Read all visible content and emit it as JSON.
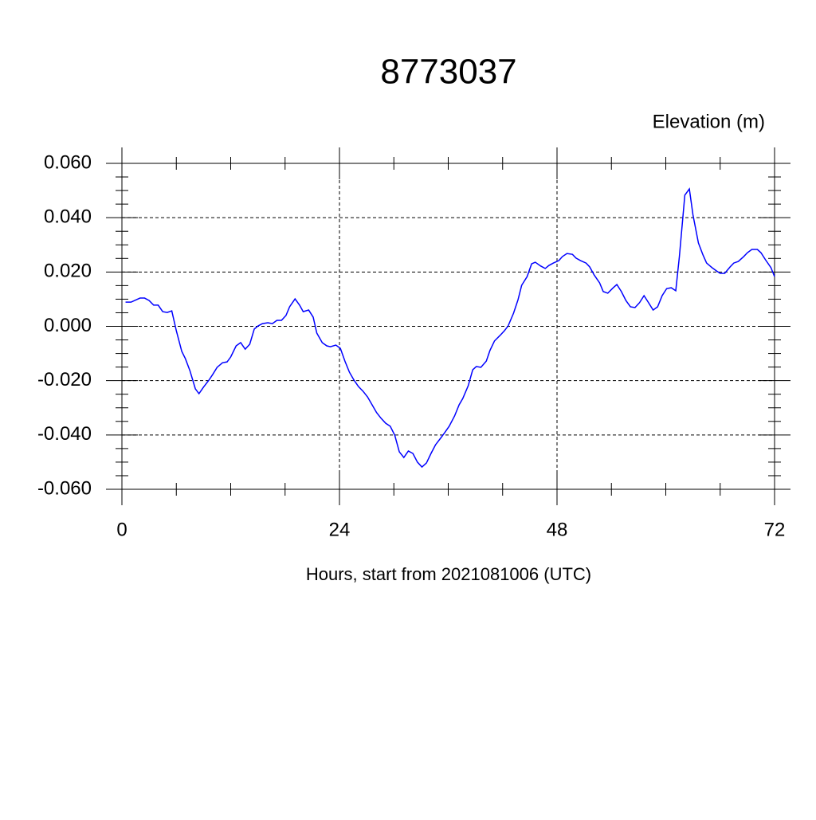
{
  "chart_data": {
    "type": "line",
    "title": "8773037",
    "ylabel": "Elevation (m)",
    "xlabel": "Hours, start from 2021081006 (UTC)",
    "x": [
      0.4,
      1.0,
      2.0,
      2.5,
      3.0,
      3.5,
      4.0,
      4.5,
      5.0,
      5.5,
      6.0,
      6.6,
      7.0,
      7.5,
      8.1,
      8.5,
      9.0,
      9.6,
      10.0,
      10.5,
      11.1,
      11.6,
      12.0,
      12.6,
      13.1,
      13.6,
      14.1,
      14.6,
      15.0,
      15.5,
      16.1,
      16.6,
      17.1,
      17.6,
      18.1,
      18.5,
      19.1,
      19.6,
      20.0,
      20.6,
      21.1,
      21.5,
      22.1,
      22.6,
      23.0,
      23.6,
      24.1,
      24.6,
      25.1,
      25.6,
      26.1,
      26.6,
      27.1,
      27.6,
      28.1,
      28.6,
      29.1,
      29.6,
      30.1,
      30.6,
      31.1,
      31.6,
      32.1,
      32.6,
      33.1,
      33.6,
      34.1,
      34.6,
      35.2,
      35.6,
      36.1,
      36.7,
      37.2,
      37.6,
      38.2,
      38.7,
      39.1,
      39.6,
      40.2,
      40.6,
      41.1,
      41.7,
      42.2,
      42.6,
      43.2,
      43.7,
      44.1,
      44.7,
      45.2,
      45.6,
      46.2,
      46.7,
      47.1,
      47.6,
      48.2,
      48.6,
      49.1,
      49.7,
      50.1,
      50.6,
      51.2,
      51.6,
      52.1,
      52.7,
      53.1,
      53.6,
      54.2,
      54.6,
      55.1,
      55.6,
      56.1,
      56.6,
      57.1,
      57.6,
      58.1,
      58.6,
      59.1,
      59.6,
      60.1,
      60.6,
      61.1,
      61.5,
      62.1,
      62.6,
      63.0,
      63.6,
      64.1,
      64.5,
      65.1,
      65.6,
      66.0,
      66.5,
      67.1,
      67.5,
      68.0,
      68.6,
      69.0,
      69.5,
      70.1,
      70.5,
      71.0,
      71.6,
      72.0
    ],
    "series": [
      {
        "name": "Elevation",
        "color": "#0000ff",
        "values": [
          0.0089,
          0.0089,
          0.0104,
          0.0104,
          0.0095,
          0.0078,
          0.0078,
          0.0054,
          0.0051,
          0.0057,
          -0.0016,
          -0.0092,
          -0.0119,
          -0.0163,
          -0.023,
          -0.0248,
          -0.0224,
          -0.0198,
          -0.0178,
          -0.0151,
          -0.0134,
          -0.0131,
          -0.0113,
          -0.0072,
          -0.006,
          -0.0084,
          -0.0066,
          -0.001,
          0.0001,
          0.001,
          0.0013,
          0.001,
          0.0022,
          0.0022,
          0.004,
          0.0072,
          0.0101,
          0.0078,
          0.0054,
          0.006,
          0.0034,
          -0.0025,
          -0.006,
          -0.0072,
          -0.0075,
          -0.0069,
          -0.0081,
          -0.0128,
          -0.0169,
          -0.0198,
          -0.0222,
          -0.0239,
          -0.026,
          -0.0289,
          -0.0318,
          -0.0339,
          -0.0357,
          -0.0368,
          -0.0401,
          -0.0462,
          -0.0483,
          -0.0459,
          -0.0468,
          -0.05,
          -0.0518,
          -0.0503,
          -0.0468,
          -0.0436,
          -0.041,
          -0.0392,
          -0.0368,
          -0.033,
          -0.0289,
          -0.0266,
          -0.0219,
          -0.016,
          -0.0148,
          -0.0151,
          -0.0128,
          -0.0089,
          -0.0054,
          -0.0034,
          -0.0016,
          0.0001,
          0.0048,
          0.0098,
          0.0151,
          0.0183,
          0.023,
          0.0236,
          0.0222,
          0.0213,
          0.0224,
          0.0233,
          0.0242,
          0.0257,
          0.0268,
          0.0265,
          0.0251,
          0.0242,
          0.0233,
          0.0219,
          0.0189,
          0.016,
          0.0128,
          0.0122,
          0.0142,
          0.0154,
          0.0128,
          0.0095,
          0.0072,
          0.0069,
          0.0087,
          0.0113,
          0.0087,
          0.006,
          0.0072,
          0.0113,
          0.0139,
          0.0142,
          0.0131,
          0.0257,
          0.0483,
          0.0506,
          0.041,
          0.0307,
          0.0263,
          0.0233,
          0.0216,
          0.0204,
          0.0195,
          0.0195,
          0.0219,
          0.0233,
          0.0239,
          0.0257,
          0.0271,
          0.0283,
          0.0283,
          0.0271,
          0.0245,
          0.0216,
          0.0183
        ]
      }
    ],
    "xlim": [
      0,
      72
    ],
    "xticks": [
      0,
      24,
      48,
      72
    ],
    "ylim": [
      -0.06,
      0.06
    ],
    "yticks": [
      {
        "value": -0.06,
        "label": "-0.060"
      },
      {
        "value": -0.04,
        "label": "-0.040"
      },
      {
        "value": -0.02,
        "label": "-0.020"
      },
      {
        "value": 0,
        "label": "0.000"
      },
      {
        "value": 0.02,
        "label": "0.020"
      },
      {
        "value": 0.04,
        "label": "0.040"
      },
      {
        "value": 0.06,
        "label": "0.060"
      }
    ],
    "grid": true
  }
}
